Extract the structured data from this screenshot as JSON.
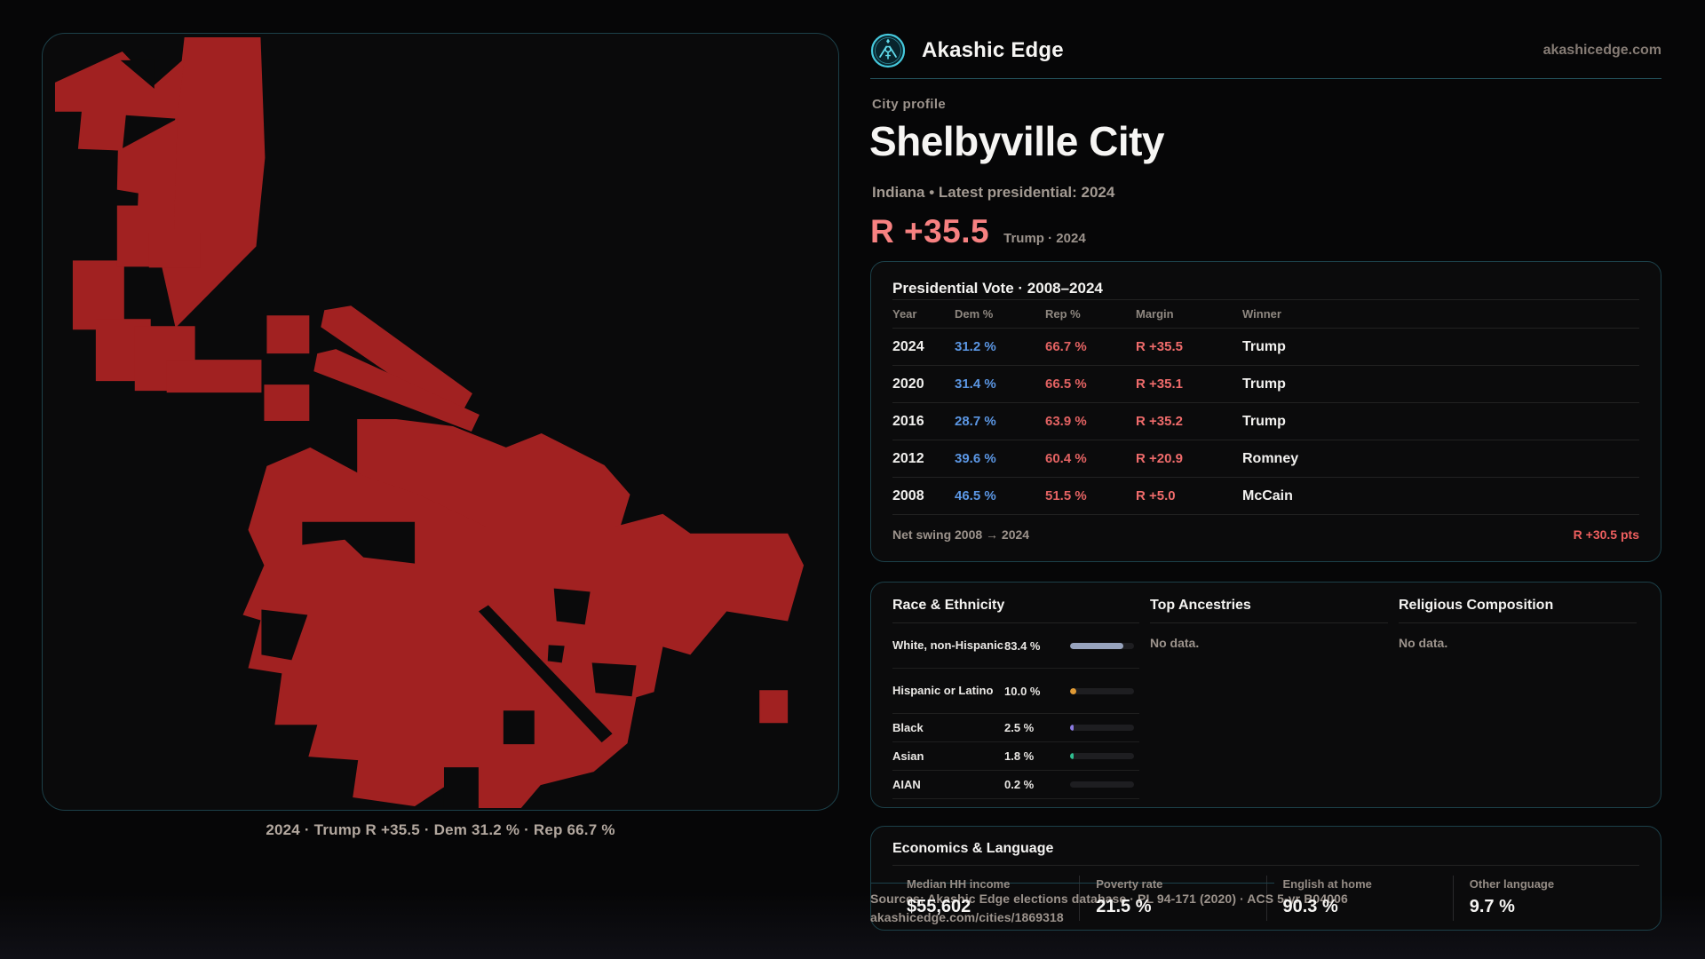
{
  "brand": {
    "name": "Akashic Edge",
    "site": "akashicedge.com",
    "logo_icon": "akashic-emblem"
  },
  "profile": {
    "kicker": "City profile",
    "title": "Shelbyville City",
    "subtitle": "Indiana • Latest presidential: 2024",
    "headline_margin": "R +35.5",
    "headline_context": "Trump · 2024"
  },
  "map": {
    "caption": "2024 · Trump R +35.5 · Dem 31.2 % · Rep 66.7 %",
    "fill_color": "#a12121"
  },
  "vote_table": {
    "title": "Presidential Vote · 2008–2024",
    "columns": [
      "Year",
      "Dem %",
      "Rep %",
      "Margin",
      "Winner"
    ],
    "rows": [
      {
        "year": "2024",
        "dem": "31.2 %",
        "rep": "66.7 %",
        "margin": "R +35.5",
        "winner": "Trump"
      },
      {
        "year": "2020",
        "dem": "31.4 %",
        "rep": "66.5 %",
        "margin": "R +35.1",
        "winner": "Trump"
      },
      {
        "year": "2016",
        "dem": "28.7 %",
        "rep": "63.9 %",
        "margin": "R +35.2",
        "winner": "Trump"
      },
      {
        "year": "2012",
        "dem": "39.6 %",
        "rep": "60.4 %",
        "margin": "R +20.9",
        "winner": "Romney"
      },
      {
        "year": "2008",
        "dem": "46.5 %",
        "rep": "51.5 %",
        "margin": "R +5.0",
        "winner": "McCain"
      }
    ],
    "net_swing_label": "Net swing 2008 → 2024",
    "net_swing_value": "R +30.5 pts"
  },
  "race": {
    "title": "Race & Ethnicity",
    "rows": [
      {
        "label": "White, non-Hispanic",
        "value": "83.4 %",
        "pct": 83.4,
        "color": "#97a3bd"
      },
      {
        "label": "Hispanic or Latino",
        "value": "10.0 %",
        "pct": 10.0,
        "color": "#e09a35"
      },
      {
        "label": "Black",
        "value": "2.5 %",
        "pct": 2.5,
        "color": "#8b7ae0"
      },
      {
        "label": "Asian",
        "value": "1.8 %",
        "pct": 1.8,
        "color": "#2fbd8f"
      },
      {
        "label": "AIAN",
        "value": "0.2 %",
        "pct": 0.2,
        "color": "#8d97a5"
      }
    ]
  },
  "ancestries": {
    "title": "Top Ancestries",
    "empty": "No data."
  },
  "religion": {
    "title": "Religious Composition",
    "empty": "No data."
  },
  "economics": {
    "title": "Economics & Language",
    "stats": [
      {
        "label": "Median HH income",
        "value": "$55,602"
      },
      {
        "label": "Poverty rate",
        "value": "21.5 %"
      },
      {
        "label": "English at home",
        "value": "90.3 %"
      },
      {
        "label": "Other language",
        "value": "9.7 %"
      }
    ]
  },
  "footer": {
    "sources": "Sources: Akashic Edge elections database · PL 94-171 (2020) · ACS 5-yr B04006",
    "permalink": "akashicedge.com/cities/1869318"
  },
  "colors": {
    "dem": "#5b96e3",
    "rep": "#e26262",
    "margin": "#ef6b6b",
    "headline": "#f78181",
    "accent_teal": "#1d434c",
    "map_red": "#a12121"
  }
}
